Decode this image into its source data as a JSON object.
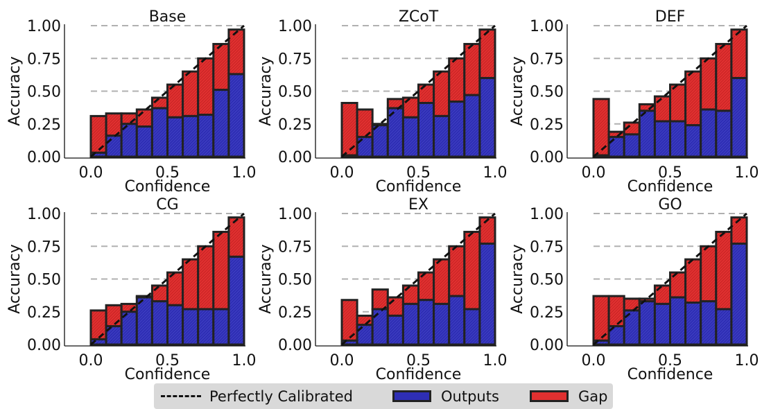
{
  "chart_data": [
    {
      "type": "bar",
      "title": "Base",
      "xlabel": "Confidence",
      "ylabel": "Accuracy",
      "xlim": [
        0,
        1
      ],
      "ylim": [
        0,
        1
      ],
      "xticks": [
        "0.0",
        "0.5",
        "1.0"
      ],
      "yticks": [
        "0.00",
        "0.25",
        "0.50",
        "0.75",
        "1.00"
      ],
      "bin_centers": [
        0.05,
        0.15,
        0.25,
        0.35,
        0.45,
        0.55,
        0.65,
        0.75,
        0.85,
        0.95
      ],
      "outputs": [
        0.03,
        0.16,
        0.25,
        0.23,
        0.37,
        0.3,
        0.31,
        0.32,
        0.51,
        0.63
      ],
      "gap_top": [
        0.31,
        0.33,
        0.33,
        0.36,
        0.45,
        0.55,
        0.65,
        0.75,
        0.86,
        0.97
      ]
    },
    {
      "type": "bar",
      "title": "ZCoT",
      "xlabel": "Confidence",
      "ylabel": "Accuracy",
      "xlim": [
        0,
        1
      ],
      "ylim": [
        0,
        1
      ],
      "xticks": [
        "0.0",
        "0.5",
        "1.0"
      ],
      "yticks": [
        "0.00",
        "0.25",
        "0.50",
        "0.75",
        "1.00"
      ],
      "bin_centers": [
        0.05,
        0.15,
        0.25,
        0.35,
        0.45,
        0.55,
        0.65,
        0.75,
        0.85,
        0.95
      ],
      "outputs": [
        0.01,
        0.15,
        0.24,
        0.37,
        0.3,
        0.41,
        0.31,
        0.42,
        0.47,
        0.6
      ],
      "gap_top": [
        0.41,
        0.36,
        0.25,
        0.44,
        0.45,
        0.55,
        0.65,
        0.75,
        0.86,
        0.97
      ]
    },
    {
      "type": "bar",
      "title": "DEF",
      "xlabel": "Confidence",
      "ylabel": "Accuracy",
      "xlim": [
        0,
        1
      ],
      "ylim": [
        0,
        1
      ],
      "xticks": [
        "0.0",
        "0.5",
        "1.0"
      ],
      "yticks": [
        "0.00",
        "0.25",
        "0.50",
        "0.75",
        "1.00"
      ],
      "bin_centers": [
        0.05,
        0.15,
        0.25,
        0.35,
        0.45,
        0.55,
        0.65,
        0.75,
        0.85,
        0.95
      ],
      "outputs": [
        0.01,
        0.15,
        0.17,
        0.35,
        0.27,
        0.27,
        0.24,
        0.36,
        0.35,
        0.6
      ],
      "gap_top": [
        0.44,
        0.19,
        0.26,
        0.4,
        0.46,
        0.55,
        0.65,
        0.75,
        0.86,
        0.97
      ]
    },
    {
      "type": "bar",
      "title": "CG",
      "xlabel": "Confidence",
      "ylabel": "Accuracy",
      "xlim": [
        0,
        1
      ],
      "ylim": [
        0,
        1
      ],
      "xticks": [
        "0.0",
        "0.5",
        "1.0"
      ],
      "yticks": [
        "0.00",
        "0.25",
        "0.50",
        "0.75",
        "1.00"
      ],
      "bin_centers": [
        0.05,
        0.15,
        0.25,
        0.35,
        0.45,
        0.55,
        0.65,
        0.75,
        0.85,
        0.95
      ],
      "outputs": [
        0.04,
        0.14,
        0.25,
        0.36,
        0.33,
        0.3,
        0.27,
        0.27,
        0.27,
        0.67
      ],
      "gap_top": [
        0.26,
        0.3,
        0.31,
        0.37,
        0.45,
        0.55,
        0.65,
        0.75,
        0.86,
        0.97
      ]
    },
    {
      "type": "bar",
      "title": "EX",
      "xlabel": "Confidence",
      "ylabel": "Accuracy",
      "xlim": [
        0,
        1
      ],
      "ylim": [
        0,
        1
      ],
      "xticks": [
        "0.0",
        "0.5",
        "1.0"
      ],
      "yticks": [
        "0.00",
        "0.25",
        "0.50",
        "0.75",
        "1.00"
      ],
      "bin_centers": [
        0.05,
        0.15,
        0.25,
        0.35,
        0.45,
        0.55,
        0.65,
        0.75,
        0.85,
        0.95
      ],
      "outputs": [
        0.03,
        0.15,
        0.27,
        0.22,
        0.31,
        0.34,
        0.31,
        0.37,
        0.27,
        0.77
      ],
      "gap_top": [
        0.34,
        0.22,
        0.42,
        0.36,
        0.45,
        0.55,
        0.65,
        0.75,
        0.86,
        0.97
      ]
    },
    {
      "type": "bar",
      "title": "GO",
      "xlabel": "Confidence",
      "ylabel": "Accuracy",
      "xlim": [
        0,
        1
      ],
      "ylim": [
        0,
        1
      ],
      "xticks": [
        "0.0",
        "0.5",
        "1.0"
      ],
      "yticks": [
        "0.00",
        "0.25",
        "0.50",
        "0.75",
        "1.00"
      ],
      "bin_centers": [
        0.05,
        0.15,
        0.25,
        0.35,
        0.45,
        0.55,
        0.65,
        0.75,
        0.85,
        0.95
      ],
      "outputs": [
        0.03,
        0.14,
        0.26,
        0.33,
        0.31,
        0.36,
        0.32,
        0.33,
        0.27,
        0.77
      ],
      "gap_top": [
        0.37,
        0.37,
        0.35,
        0.35,
        0.45,
        0.55,
        0.65,
        0.75,
        0.86,
        0.97
      ]
    }
  ],
  "legend": {
    "items": [
      {
        "label": "Perfectly Calibrated",
        "kind": "dashed-line",
        "color": "#111111"
      },
      {
        "label": "Outputs",
        "kind": "bar",
        "color": "#2e2eb4"
      },
      {
        "label": "Gap",
        "kind": "bar",
        "color": "#e03030"
      }
    ],
    "placement": "bottom-center"
  },
  "colors": {
    "outputs": "#2e2eb4",
    "gap": "#e03030",
    "bar_edge": "#222222",
    "grid": "#b0b0b0",
    "diagonal": "#111111"
  },
  "grid": true
}
